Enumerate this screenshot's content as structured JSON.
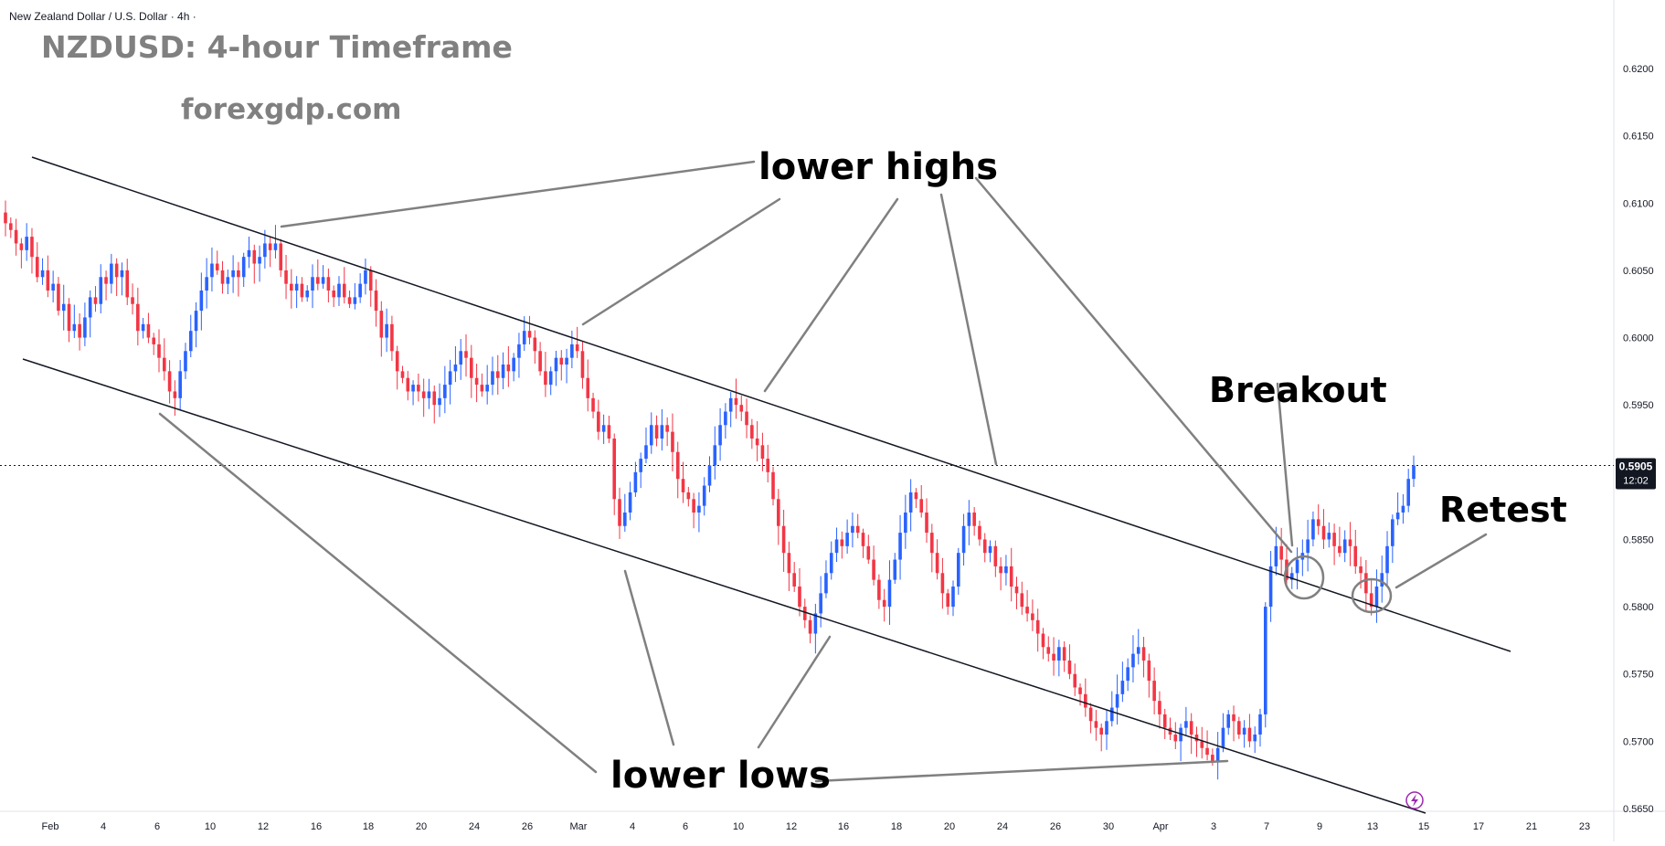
{
  "header": {
    "symbol_line": "New Zealand Dollar / U.S. Dollar · 4h ·",
    "title": "NZDUSD: 4-hour Timeframe",
    "watermark": "forexgdp.com"
  },
  "price_badge": {
    "price": "0.5905",
    "countdown": "12:02",
    "color": "#131722"
  },
  "colors": {
    "up": "#2962ff",
    "down": "#f23645",
    "channel": "#131722",
    "annotation_line": "#808080",
    "title_gray": "#808080"
  },
  "annotations": {
    "lower_highs": "lower highs",
    "lower_lows": "lower lows",
    "breakout": "Breakout",
    "retest": "Retest"
  },
  "icons": {
    "lightning": "lightning-icon"
  },
  "chart_data": {
    "type": "candlestick",
    "title": "NZDUSD: 4-hour Timeframe",
    "ylim": [
      0.565,
      0.6225
    ],
    "y_ticks": [
      "0.6200",
      "0.6150",
      "0.6100",
      "0.6050",
      "0.6000",
      "0.5950",
      "0.5900",
      "0.5850",
      "0.5800",
      "0.5750",
      "0.5700",
      "0.5650"
    ],
    "x_ticks": [
      "Feb",
      "4",
      "6",
      "10",
      "12",
      "16",
      "18",
      "20",
      "24",
      "26",
      "Mar",
      "4",
      "6",
      "10",
      "12",
      "16",
      "18",
      "20",
      "24",
      "26",
      "30",
      "Apr",
      "3",
      "7",
      "9",
      "13",
      "15",
      "17",
      "21",
      "23"
    ],
    "last_price": 0.5905,
    "trend": "descending channel with lower highs and lower lows, bullish breakout and retest",
    "key_points": [
      {
        "label": "lower highs",
        "date": "Feb 12",
        "price": 0.6075
      },
      {
        "label": "lower highs",
        "date": "Feb 27",
        "price": 0.6005
      },
      {
        "label": "lower highs",
        "date": "Mar 10",
        "price": 0.5962
      },
      {
        "label": "lower lows",
        "date": "Feb 6",
        "price": 0.595
      },
      {
        "label": "lower lows",
        "date": "Mar 4",
        "price": 0.5838
      },
      {
        "label": "lower lows",
        "date": "Mar 14",
        "price": 0.5768
      },
      {
        "label": "lower lows",
        "date": "Apr 4",
        "price": 0.568
      },
      {
        "label": "Breakout",
        "date": "Apr 8",
        "price": 0.583
      },
      {
        "label": "Retest",
        "date": "Apr 13",
        "price": 0.5805
      }
    ],
    "closes": [
      0.6085,
      0.608,
      0.607,
      0.6065,
      0.6075,
      0.606,
      0.6045,
      0.605,
      0.6035,
      0.604,
      0.602,
      0.6025,
      0.6005,
      0.601,
      0.6,
      0.6015,
      0.603,
      0.6025,
      0.6045,
      0.604,
      0.6055,
      0.6045,
      0.605,
      0.603,
      0.6025,
      0.6005,
      0.601,
      0.6,
      0.5995,
      0.5985,
      0.5975,
      0.596,
      0.5955,
      0.5975,
      0.599,
      0.6005,
      0.602,
      0.6035,
      0.6045,
      0.6055,
      0.605,
      0.604,
      0.6045,
      0.605,
      0.6045,
      0.606,
      0.6065,
      0.6055,
      0.606,
      0.607,
      0.6065,
      0.607,
      0.605,
      0.604,
      0.6035,
      0.604,
      0.603,
      0.6035,
      0.6045,
      0.604,
      0.6045,
      0.6035,
      0.603,
      0.604,
      0.603,
      0.6025,
      0.603,
      0.604,
      0.605,
      0.6035,
      0.602,
      0.6,
      0.601,
      0.599,
      0.5975,
      0.597,
      0.596,
      0.5965,
      0.596,
      0.5955,
      0.596,
      0.595,
      0.5955,
      0.5965,
      0.5975,
      0.598,
      0.599,
      0.5985,
      0.597,
      0.5965,
      0.596,
      0.5965,
      0.5975,
      0.597,
      0.598,
      0.5975,
      0.5985,
      0.5995,
      0.6005,
      0.6,
      0.599,
      0.5975,
      0.5965,
      0.5975,
      0.5985,
      0.598,
      0.5985,
      0.5995,
      0.599,
      0.597,
      0.5955,
      0.5945,
      0.593,
      0.5935,
      0.5925,
      0.588,
      0.586,
      0.587,
      0.5885,
      0.59,
      0.591,
      0.592,
      0.5935,
      0.5925,
      0.5935,
      0.593,
      0.5915,
      0.5895,
      0.5885,
      0.588,
      0.587,
      0.5875,
      0.589,
      0.5905,
      0.592,
      0.5935,
      0.5945,
      0.5955,
      0.595,
      0.5945,
      0.5935,
      0.5925,
      0.592,
      0.591,
      0.59,
      0.588,
      0.586,
      0.584,
      0.5825,
      0.5815,
      0.58,
      0.579,
      0.578,
      0.5795,
      0.581,
      0.5825,
      0.584,
      0.585,
      0.5845,
      0.5855,
      0.586,
      0.5855,
      0.5845,
      0.5835,
      0.582,
      0.5805,
      0.58,
      0.582,
      0.5835,
      0.5855,
      0.587,
      0.5885,
      0.588,
      0.587,
      0.5855,
      0.584,
      0.5825,
      0.581,
      0.58,
      0.5815,
      0.584,
      0.586,
      0.587,
      0.586,
      0.585,
      0.584,
      0.5845,
      0.583,
      0.5825,
      0.583,
      0.5815,
      0.581,
      0.58,
      0.5795,
      0.579,
      0.578,
      0.577,
      0.5765,
      0.576,
      0.577,
      0.576,
      0.575,
      0.574,
      0.5735,
      0.5725,
      0.5715,
      0.571,
      0.5705,
      0.5715,
      0.5725,
      0.5735,
      0.5745,
      0.5755,
      0.5765,
      0.577,
      0.576,
      0.5745,
      0.573,
      0.572,
      0.571,
      0.5705,
      0.57,
      0.571,
      0.5715,
      0.5705,
      0.57,
      0.5695,
      0.569,
      0.5685,
      0.5695,
      0.571,
      0.572,
      0.5715,
      0.5705,
      0.571,
      0.57,
      0.5705,
      0.572,
      0.58,
      0.583,
      0.5845,
      0.5835,
      0.582,
      0.5825,
      0.5835,
      0.584,
      0.585,
      0.5865,
      0.586,
      0.585,
      0.5855,
      0.5845,
      0.584,
      0.585,
      0.5845,
      0.583,
      0.5825,
      0.581,
      0.58,
      0.5815,
      0.5825,
      0.5845,
      0.5865,
      0.587,
      0.5875,
      0.5895,
      0.5905
    ]
  }
}
